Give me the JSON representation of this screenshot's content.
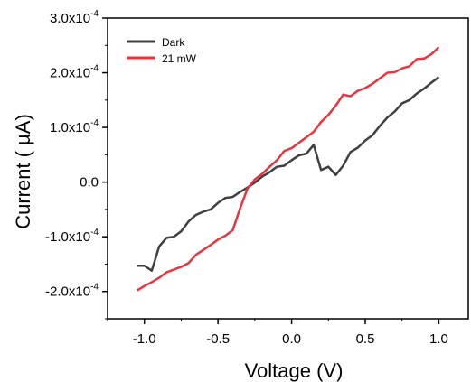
{
  "chart_data": {
    "type": "line",
    "xlabel": "Voltage (V)",
    "ylabel": "Current ( µA)",
    "xlim": [
      -1.25,
      1.2
    ],
    "ylim": [
      -0.00025,
      0.0003
    ],
    "x_ticks": [
      -1.0,
      -0.5,
      0.0,
      0.5,
      1.0
    ],
    "x_tick_labels": [
      "-1.0",
      "-0.5",
      "0.0",
      "0.5",
      "1.0"
    ],
    "y_ticks": [
      -0.0002,
      -0.0001,
      0.0,
      0.0001,
      0.0002,
      0.0003
    ],
    "y_tick_labels": [
      {
        "mantissa": "-2.0x10",
        "exp": "-4"
      },
      {
        "mantissa": "-1.0x10",
        "exp": "-4"
      },
      {
        "mantissa": "0.0",
        "exp": ""
      },
      {
        "mantissa": "1.0x10",
        "exp": "-4"
      },
      {
        "mantissa": "2.0x10",
        "exp": "-4"
      },
      {
        "mantissa": "3.0x10",
        "exp": "-4"
      }
    ],
    "grid": false,
    "legend_position": "top-left",
    "series": [
      {
        "name": "Dark",
        "color": "#404040",
        "x": [
          -1.05,
          -1.0,
          -0.95,
          -0.9,
          -0.85,
          -0.8,
          -0.75,
          -0.7,
          -0.65,
          -0.6,
          -0.55,
          -0.5,
          -0.45,
          -0.4,
          -0.35,
          -0.3,
          -0.25,
          -0.2,
          -0.15,
          -0.1,
          -0.05,
          0.0,
          0.05,
          0.1,
          0.15,
          0.2,
          0.25,
          0.3,
          0.35,
          0.4,
          0.45,
          0.5,
          0.55,
          0.6,
          0.65,
          0.7,
          0.75,
          0.8,
          0.85,
          0.9,
          0.95,
          1.0
        ],
        "y": [
          -0.000153,
          -0.000153,
          -0.000162,
          -0.000118,
          -0.000102,
          -0.0001,
          -9e-05,
          -7.2e-05,
          -6e-05,
          -5.4e-05,
          -5e-05,
          -3.8e-05,
          -2.9e-05,
          -2.7e-05,
          -1.8e-05,
          -1e-05,
          -1e-06,
          1e-05,
          1.8e-05,
          2.8e-05,
          3e-05,
          4e-05,
          4.9e-05,
          5.2e-05,
          6.8e-05,
          2.2e-05,
          2.8e-05,
          1.3e-05,
          3e-05,
          5.5e-05,
          6.3e-05,
          7.6e-05,
          8.6e-05,
          0.000103,
          0.000118,
          0.000129,
          0.000144,
          0.00015,
          0.000162,
          0.000171,
          0.000182,
          0.000192
        ]
      },
      {
        "name": "21 mW",
        "color": "#e8353e",
        "x": [
          -1.05,
          -1.0,
          -0.95,
          -0.9,
          -0.85,
          -0.8,
          -0.75,
          -0.7,
          -0.65,
          -0.6,
          -0.55,
          -0.5,
          -0.45,
          -0.4,
          -0.35,
          -0.3,
          -0.25,
          -0.2,
          -0.15,
          -0.1,
          -0.05,
          0.0,
          0.05,
          0.1,
          0.15,
          0.2,
          0.25,
          0.3,
          0.35,
          0.4,
          0.45,
          0.5,
          0.55,
          0.6,
          0.65,
          0.7,
          0.75,
          0.8,
          0.85,
          0.9,
          0.95,
          1.0
        ],
        "y": [
          -0.000198,
          -0.00019,
          -0.000183,
          -0.000175,
          -0.000165,
          -0.00016,
          -0.000155,
          -0.000148,
          -0.000133,
          -0.000124,
          -0.000115,
          -0.000105,
          -9.8e-05,
          -8.8e-05,
          -4.8e-05,
          -1.2e-05,
          5e-06,
          1.5e-05,
          2.8e-05,
          4e-05,
          5.7e-05,
          6.2e-05,
          7.2e-05,
          8.2e-05,
          9.2e-05,
          0.00011,
          0.000123,
          0.00014,
          0.00016,
          0.000157,
          0.000167,
          0.000172,
          0.00018,
          0.00019,
          0.0002,
          0.000201,
          0.000208,
          0.000212,
          0.000225,
          0.000226,
          0.000234,
          0.000247
        ]
      }
    ]
  }
}
